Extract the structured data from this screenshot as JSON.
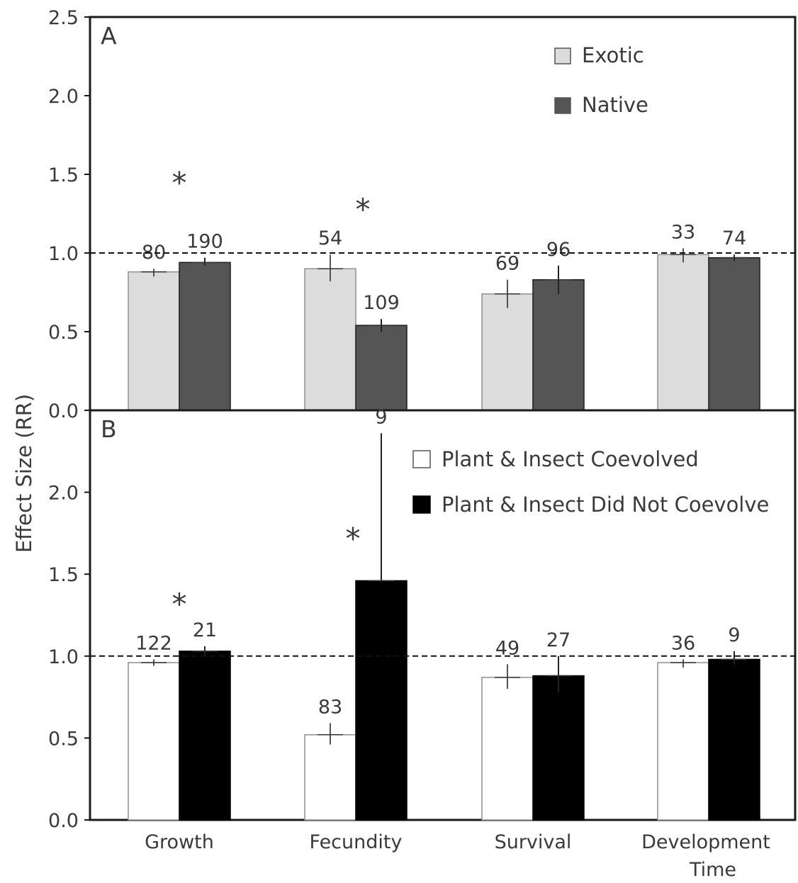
{
  "figure": {
    "ylabel": "Effect Size (RR)",
    "xlabels": [
      "Growth",
      "Fecundity",
      "Survival",
      "Development Time"
    ]
  },
  "chart_data": [
    {
      "type": "bar",
      "panel_label": "A",
      "categories": [
        "Growth",
        "Fecundity",
        "Survival",
        "Development Time"
      ],
      "ylim": [
        0,
        2.5
      ],
      "yticks": [
        "0.0",
        "0.5",
        "1.0",
        "1.5",
        "2.0",
        "2.5"
      ],
      "reference_line": 1.0,
      "legend_position": "top-right",
      "series": [
        {
          "name": "Exotic",
          "color": "#dcdcdc",
          "stroke": "#909090",
          "values": [
            0.88,
            0.9,
            0.74,
            0.99
          ],
          "error_low": [
            0.85,
            0.82,
            0.65,
            0.94
          ],
          "error_high": [
            0.9,
            0.99,
            0.83,
            1.03
          ],
          "n_labels": [
            "80",
            "54",
            "69",
            "33"
          ]
        },
        {
          "name": "Native",
          "color": "#555555",
          "stroke": "#1e1e1e",
          "values": [
            0.94,
            0.54,
            0.83,
            0.97
          ],
          "error_low": [
            0.92,
            0.5,
            0.74,
            0.95
          ],
          "error_high": [
            0.97,
            0.58,
            0.92,
            0.99
          ],
          "n_labels": [
            "190",
            "109",
            "96",
            "74"
          ]
        }
      ],
      "significance": [
        {
          "category": "Growth",
          "label": "*",
          "y": 1.48
        },
        {
          "category": "Fecundity",
          "label": "*",
          "y": 1.31
        }
      ]
    },
    {
      "type": "bar",
      "panel_label": "B",
      "categories": [
        "Growth",
        "Fecundity",
        "Survival",
        "Development Time"
      ],
      "ylim": [
        0,
        2.5
      ],
      "yticks": [
        "0.0",
        "0.5",
        "1.0",
        "1.5",
        "2.0"
      ],
      "reference_line": 1.0,
      "legend_position": "top-right",
      "series": [
        {
          "name": "Plant & Insect Coevolved",
          "color": "#ffffff",
          "stroke": "#909090",
          "values": [
            0.96,
            0.52,
            0.87,
            0.96
          ],
          "error_low": [
            0.94,
            0.46,
            0.8,
            0.93
          ],
          "error_high": [
            0.98,
            0.59,
            0.95,
            0.98
          ],
          "n_labels": [
            "122",
            "83",
            "49",
            "36"
          ]
        },
        {
          "name": "Plant & Insect Did Not Coevolve",
          "color": "#000000",
          "stroke": "#000000",
          "values": [
            1.03,
            1.46,
            0.88,
            0.98
          ],
          "error_low": [
            1.0,
            1.46,
            0.78,
            0.95
          ],
          "error_high": [
            1.06,
            2.36,
            1.0,
            1.03
          ],
          "n_labels": [
            "21",
            "9",
            "27",
            "9"
          ]
        }
      ],
      "significance": [
        {
          "category": "Growth",
          "label": "*",
          "y": 1.35
        },
        {
          "category": "Fecundity",
          "label": "*",
          "y": 1.75
        }
      ]
    }
  ]
}
